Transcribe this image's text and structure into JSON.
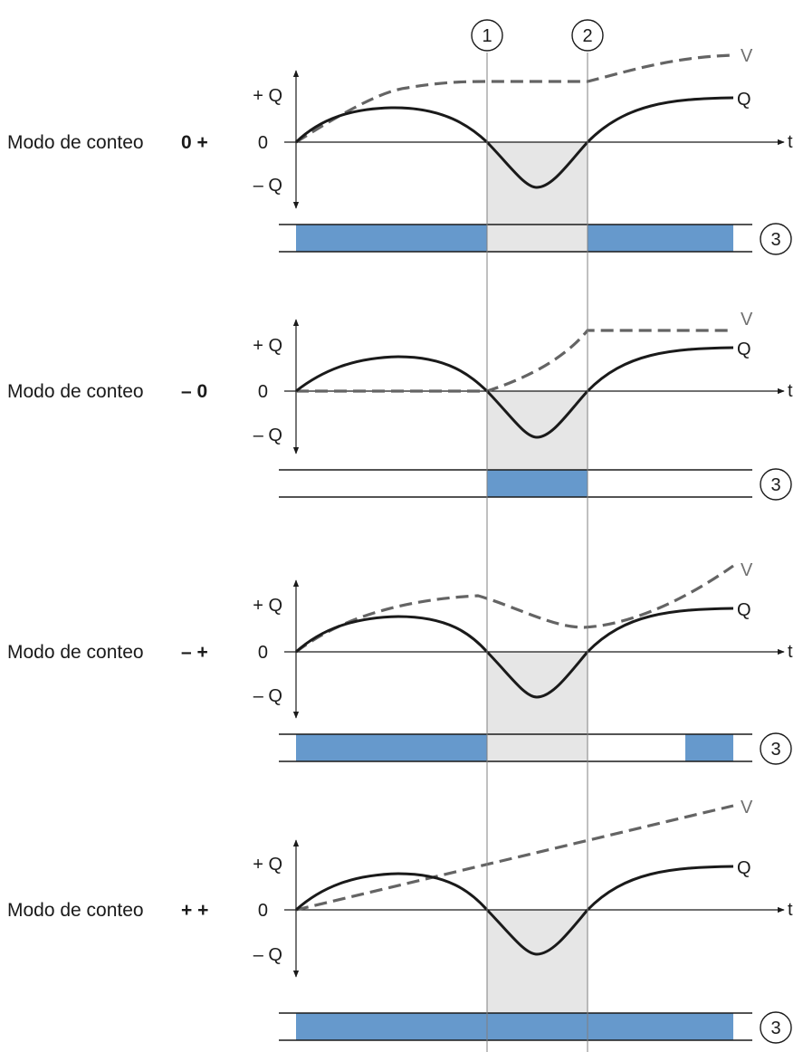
{
  "markers": [
    "1",
    "2"
  ],
  "band_marker": "3",
  "axis": {
    "plus": "+ Q",
    "zero": "0",
    "minus": "– Q",
    "time": "t"
  },
  "curve_labels": {
    "q": "Q",
    "v": "V"
  },
  "colors": {
    "band_fill": "#6699cc",
    "shade": "#e6e6e6",
    "q_curve": "#1a1a1a",
    "v_curve": "#646464",
    "vlines": "#808080"
  },
  "panels": [
    {
      "mode_label": "Modo de conteo",
      "mode_code": "0 +"
    },
    {
      "mode_label": "Modo de conteo",
      "mode_code": "– 0"
    },
    {
      "mode_label": "Modo de conteo",
      "mode_code": "– +"
    },
    {
      "mode_label": "Modo de conteo",
      "mode_code": "+ +"
    }
  ]
}
